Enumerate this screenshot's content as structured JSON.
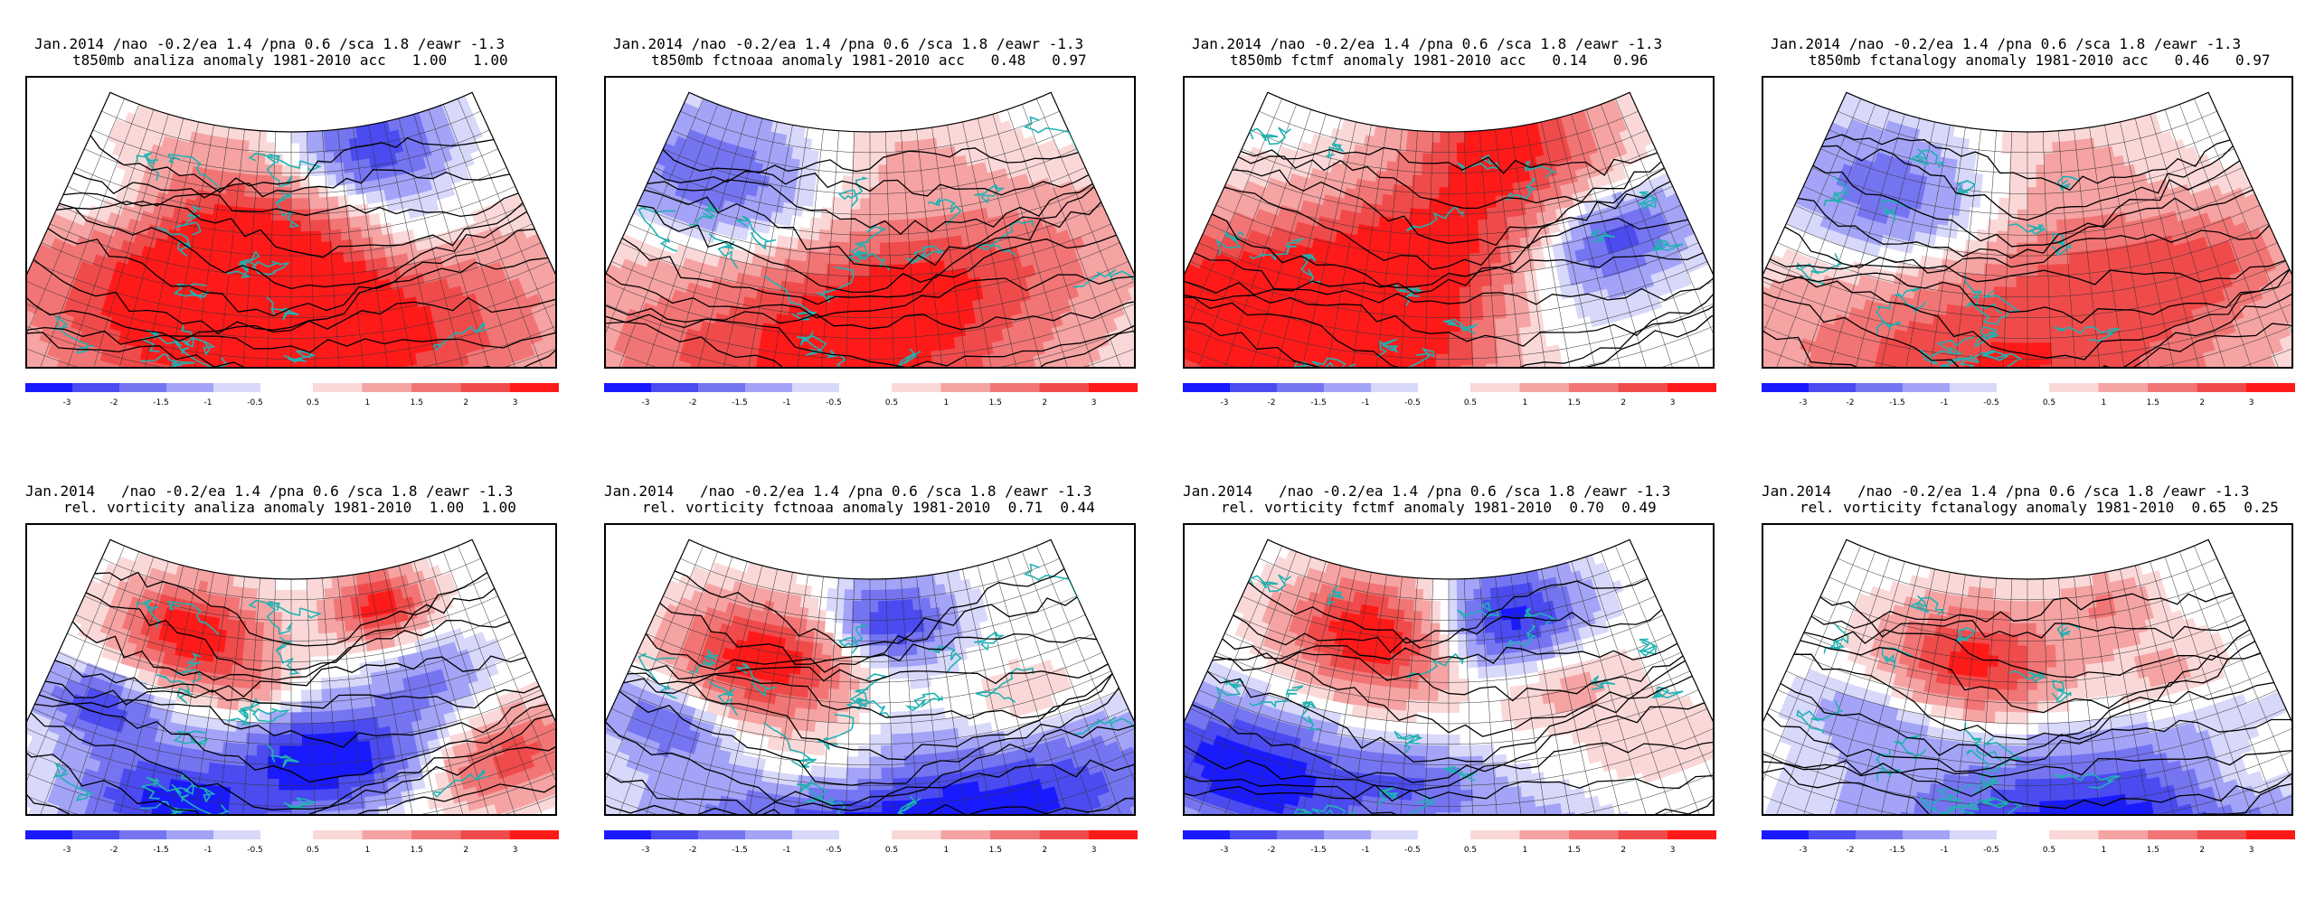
{
  "colors": {
    "neg": [
      "#1a1aff",
      "#4b4bf0",
      "#7575f2",
      "#a3a3f7",
      "#d8d8fb"
    ],
    "pos": [
      "#fbd8d8",
      "#f5a3a3",
      "#f27575",
      "#f04b4b",
      "#ff1a1a"
    ],
    "coast": "#20b2b2",
    "contour": "#000000"
  },
  "colorbar": {
    "neg_labels": [
      "-3",
      "-2",
      "-1.5",
      "-1",
      "-0.5"
    ],
    "pos_labels": [
      "0.5",
      "1",
      "1.5",
      "2",
      "3"
    ]
  },
  "panels": [
    {
      "title_line1": "Jan.2014 /nao -0.2/ea 1.4 /pna 0.6 /sca 1.8 /eawr -1.3",
      "title_line2": "t850mb analiza anomaly 1981-2010 acc   1.00   1.00",
      "field": "t850mb",
      "source": "analiza",
      "acc1": 1.0,
      "acc2": 1.0,
      "blobs": [
        {
          "u": 0.45,
          "v": 0.45,
          "r": 0.35,
          "a": 1.0
        },
        {
          "u": 0.3,
          "v": 0.75,
          "r": 0.35,
          "a": 0.6
        },
        {
          "u": 0.75,
          "v": 0.8,
          "r": 0.3,
          "a": 0.5
        },
        {
          "u": 0.7,
          "v": 0.1,
          "r": 0.2,
          "a": -0.9
        },
        {
          "u": 0.75,
          "v": 0.4,
          "r": 0.15,
          "a": -0.4
        },
        {
          "u": 0.08,
          "v": 0.35,
          "r": 0.15,
          "a": -0.4
        }
      ]
    },
    {
      "title_line1": "Jan.2014 /nao -0.2/ea 1.4 /pna 0.6 /sca 1.8 /eawr -1.3",
      "title_line2": "t850mb fctnoaa anomaly 1981-2010 acc   0.48   0.97",
      "field": "t850mb",
      "source": "fctnoaa",
      "acc1": 0.48,
      "acc2": 0.97,
      "blobs": [
        {
          "u": 0.4,
          "v": 0.85,
          "r": 0.4,
          "a": 0.8
        },
        {
          "u": 0.55,
          "v": 0.55,
          "r": 0.25,
          "a": 0.5
        },
        {
          "u": 0.15,
          "v": 0.25,
          "r": 0.25,
          "a": -0.6
        },
        {
          "u": 0.85,
          "v": 0.5,
          "r": 0.25,
          "a": 0.3
        },
        {
          "u": 0.6,
          "v": 0.1,
          "r": 0.25,
          "a": 0.2
        }
      ]
    },
    {
      "title_line1": "Jan.2014 /nao -0.2/ea 1.4 /pna 0.6 /sca 1.8 /eawr -1.3",
      "title_line2": "t850mb fctmf anomaly 1981-2010 acc   0.14   0.96",
      "field": "t850mb",
      "source": "fctmf",
      "acc1": 0.14,
      "acc2": 0.96,
      "blobs": [
        {
          "u": 0.15,
          "v": 0.8,
          "r": 0.35,
          "a": 1.0
        },
        {
          "u": 0.45,
          "v": 0.4,
          "r": 0.25,
          "a": 0.7
        },
        {
          "u": 0.65,
          "v": 0.05,
          "r": 0.25,
          "a": 0.9
        },
        {
          "u": 0.35,
          "v": 0.7,
          "r": 0.25,
          "a": 0.6
        },
        {
          "u": 0.85,
          "v": 0.45,
          "r": 0.15,
          "a": -0.7
        },
        {
          "u": 0.7,
          "v": 0.65,
          "r": 0.2,
          "a": -0.2
        }
      ]
    },
    {
      "title_line1": "Jan.2014 /nao -0.2/ea 1.4 /pna 0.6 /sca 1.8 /eawr -1.3",
      "title_line2": "t850mb fctanalogy anomaly 1981-2010 acc   0.46   0.97",
      "field": "t850mb",
      "source": "fctanalogy",
      "acc1": 0.46,
      "acc2": 0.97,
      "blobs": [
        {
          "u": 0.45,
          "v": 0.85,
          "r": 0.4,
          "a": 0.8
        },
        {
          "u": 0.85,
          "v": 0.55,
          "r": 0.2,
          "a": 0.5
        },
        {
          "u": 0.2,
          "v": 0.3,
          "r": 0.25,
          "a": -0.6
        },
        {
          "u": 0.55,
          "v": 0.45,
          "r": 0.25,
          "a": 0.3
        },
        {
          "u": 0.6,
          "v": 0.1,
          "r": 0.25,
          "a": 0.2
        }
      ]
    },
    {
      "title_line1": "Jan.2014   /nao -0.2/ea 1.4 /pna 0.6 /sca 1.8 /eawr -1.3",
      "title_line2": "rel. vorticity analiza anomaly 1981-2010  1.00  1.00",
      "field": "rel. vorticity",
      "source": "analiza",
      "acc1": 1.0,
      "acc2": 1.0,
      "blobs": [
        {
          "u": 0.27,
          "v": 0.22,
          "r": 0.17,
          "a": 1.0
        },
        {
          "u": 0.72,
          "v": 0.12,
          "r": 0.12,
          "a": 0.9
        },
        {
          "u": 0.58,
          "v": 0.62,
          "r": 0.18,
          "a": -1.0
        },
        {
          "u": 0.3,
          "v": 0.82,
          "r": 0.18,
          "a": -0.9
        },
        {
          "u": 0.12,
          "v": 0.55,
          "r": 0.12,
          "a": -0.7
        },
        {
          "u": 0.9,
          "v": 0.75,
          "r": 0.15,
          "a": 0.7
        },
        {
          "u": 0.8,
          "v": 0.4,
          "r": 0.12,
          "a": -0.4
        },
        {
          "u": 0.42,
          "v": 0.4,
          "r": 0.1,
          "a": 0.3
        }
      ]
    },
    {
      "title_line1": "Jan.2014   /nao -0.2/ea 1.4 /pna 0.6 /sca 1.8 /eawr -1.3",
      "title_line2": "rel. vorticity fctnoaa anomaly 1981-2010  0.71  0.44",
      "field": "rel. vorticity",
      "source": "fctnoaa",
      "acc1": 0.71,
      "acc2": 0.44,
      "blobs": [
        {
          "u": 0.27,
          "v": 0.32,
          "r": 0.2,
          "a": 1.0
        },
        {
          "u": 0.55,
          "v": 0.15,
          "r": 0.15,
          "a": -0.8
        },
        {
          "u": 0.55,
          "v": 0.92,
          "r": 0.35,
          "a": -1.0
        },
        {
          "u": 0.1,
          "v": 0.62,
          "r": 0.12,
          "a": -0.5
        },
        {
          "u": 0.4,
          "v": 0.65,
          "r": 0.15,
          "a": 0.4
        },
        {
          "u": 0.8,
          "v": 0.5,
          "r": 0.15,
          "a": 0.3
        },
        {
          "u": 0.85,
          "v": 0.8,
          "r": 0.2,
          "a": -0.3
        }
      ]
    },
    {
      "title_line1": "Jan.2014   /nao -0.2/ea 1.4 /pna 0.6 /sca 1.8 /eawr -1.3",
      "title_line2": "rel. vorticity fctmf anomaly 1981-2010  0.70  0.49",
      "field": "rel. vorticity",
      "source": "fctmf",
      "acc1": 0.7,
      "acc2": 0.49,
      "blobs": [
        {
          "u": 0.32,
          "v": 0.22,
          "r": 0.2,
          "a": 1.0
        },
        {
          "u": 0.65,
          "v": 0.15,
          "r": 0.18,
          "a": -0.9
        },
        {
          "u": 0.15,
          "v": 0.78,
          "r": 0.22,
          "a": -1.0
        },
        {
          "u": 0.45,
          "v": 0.7,
          "r": 0.12,
          "a": -0.4
        },
        {
          "u": 0.75,
          "v": 0.4,
          "r": 0.15,
          "a": 0.3
        },
        {
          "u": 0.6,
          "v": 0.9,
          "r": 0.2,
          "a": -0.3
        },
        {
          "u": 0.88,
          "v": 0.7,
          "r": 0.15,
          "a": 0.2
        }
      ]
    },
    {
      "title_line1": "Jan.2014   /nao -0.2/ea 1.4 /pna 0.6 /sca 1.8 /eawr -1.3",
      "title_line2": "rel. vorticity fctanalogy anomaly 1981-2010  0.65  0.25",
      "field": "rel. vorticity",
      "source": "fctanalogy",
      "acc1": 0.65,
      "acc2": 0.25,
      "blobs": [
        {
          "u": 0.38,
          "v": 0.3,
          "r": 0.2,
          "a": 0.9
        },
        {
          "u": 0.7,
          "v": 0.12,
          "r": 0.12,
          "a": 0.4
        },
        {
          "u": 0.62,
          "v": 0.92,
          "r": 0.35,
          "a": -1.0
        },
        {
          "u": 0.2,
          "v": 0.55,
          "r": 0.15,
          "a": -0.3
        },
        {
          "u": 0.8,
          "v": 0.4,
          "r": 0.15,
          "a": 0.3
        },
        {
          "u": 0.9,
          "v": 0.8,
          "r": 0.15,
          "a": 0.4
        }
      ]
    }
  ]
}
